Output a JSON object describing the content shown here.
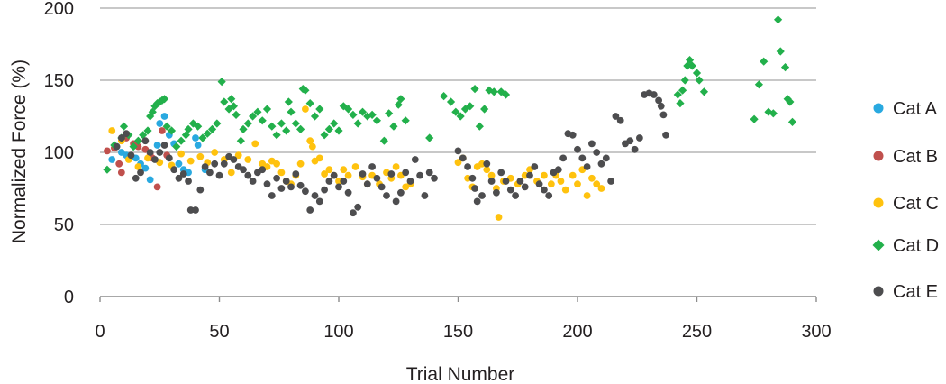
{
  "chart_data": {
    "type": "scatter",
    "title": "",
    "xlabel": "Trial Number",
    "ylabel": "Normalized Force (%)",
    "xlim": [
      0,
      300
    ],
    "ylim": [
      0,
      200
    ],
    "x_ticks": [
      "0",
      "50",
      "100",
      "150",
      "200",
      "250",
      "300"
    ],
    "y_ticks": [
      "0",
      "50",
      "100",
      "150",
      "200"
    ],
    "grid": "horizontal",
    "legend_position": "right",
    "series": [
      {
        "name": "Cat A",
        "color": "#29a9e0",
        "marker": "circle",
        "points": [
          [
            5,
            95
          ],
          [
            7,
            104
          ],
          [
            9,
            100
          ],
          [
            11,
            98
          ],
          [
            13,
            97
          ],
          [
            15,
            96
          ],
          [
            17,
            92
          ],
          [
            19,
            89
          ],
          [
            21,
            81
          ],
          [
            24,
            105
          ],
          [
            25,
            120
          ],
          [
            27,
            125
          ],
          [
            29,
            112
          ],
          [
            31,
            106
          ],
          [
            33,
            92
          ],
          [
            35,
            88
          ],
          [
            37,
            86
          ],
          [
            40,
            110
          ],
          [
            41,
            105
          ],
          [
            44,
            88
          ]
        ]
      },
      {
        "name": "Cat B",
        "color": "#c0504d",
        "marker": "circle",
        "points": [
          [
            3,
            101
          ],
          [
            6,
            103
          ],
          [
            8,
            92
          ],
          [
            9,
            86
          ],
          [
            11,
            110
          ],
          [
            14,
            106
          ],
          [
            16,
            104
          ],
          [
            19,
            102
          ],
          [
            21,
            99
          ],
          [
            22,
            96
          ],
          [
            24,
            76
          ],
          [
            26,
            115
          ],
          [
            28,
            98
          ]
        ]
      },
      {
        "name": "Cat C",
        "color": "#ffc20e",
        "marker": "circle",
        "points": [
          [
            5,
            115
          ],
          [
            9,
            108
          ],
          [
            12,
            95
          ],
          [
            16,
            90
          ],
          [
            20,
            96
          ],
          [
            25,
            93
          ],
          [
            30,
            91
          ],
          [
            34,
            99
          ],
          [
            38,
            94
          ],
          [
            42,
            97
          ],
          [
            45,
            93
          ],
          [
            48,
            100
          ],
          [
            52,
            95
          ],
          [
            55,
            86
          ],
          [
            58,
            98
          ],
          [
            62,
            95
          ],
          [
            65,
            106
          ],
          [
            68,
            92
          ],
          [
            70,
            90
          ],
          [
            72,
            94
          ],
          [
            74,
            92
          ],
          [
            76,
            86
          ],
          [
            78,
            80
          ],
          [
            80,
            78
          ],
          [
            82,
            84
          ],
          [
            84,
            92
          ],
          [
            86,
            130
          ],
          [
            88,
            108
          ],
          [
            89,
            104
          ],
          [
            90,
            94
          ],
          [
            92,
            96
          ],
          [
            94,
            85
          ],
          [
            96,
            88
          ],
          [
            98,
            84
          ],
          [
            100,
            80
          ],
          [
            102,
            88
          ],
          [
            104,
            84
          ],
          [
            107,
            90
          ],
          [
            110,
            83
          ],
          [
            112,
            78
          ],
          [
            114,
            84
          ],
          [
            117,
            78
          ],
          [
            120,
            86
          ],
          [
            122,
            82
          ],
          [
            124,
            90
          ],
          [
            126,
            84
          ],
          [
            128,
            76
          ],
          [
            130,
            78
          ],
          [
            150,
            93
          ],
          [
            152,
            96
          ],
          [
            154,
            82
          ],
          [
            156,
            76
          ],
          [
            158,
            90
          ],
          [
            160,
            92
          ],
          [
            162,
            88
          ],
          [
            164,
            84
          ],
          [
            166,
            75
          ],
          [
            167,
            55
          ],
          [
            169,
            80
          ],
          [
            172,
            82
          ],
          [
            175,
            78
          ],
          [
            178,
            84
          ],
          [
            180,
            88
          ],
          [
            183,
            80
          ],
          [
            186,
            84
          ],
          [
            189,
            78
          ],
          [
            191,
            84
          ],
          [
            193,
            80
          ],
          [
            195,
            74
          ],
          [
            198,
            84
          ],
          [
            200,
            78
          ],
          [
            202,
            88
          ],
          [
            204,
            70
          ],
          [
            206,
            82
          ],
          [
            208,
            78
          ],
          [
            210,
            75
          ]
        ]
      },
      {
        "name": "Cat D",
        "color": "#22b04b",
        "marker": "diamond",
        "points": [
          [
            3,
            88
          ],
          [
            6,
            105
          ],
          [
            9,
            110
          ],
          [
            10,
            118
          ],
          [
            12,
            112
          ],
          [
            14,
            104
          ],
          [
            16,
            108
          ],
          [
            18,
            112
          ],
          [
            20,
            115
          ],
          [
            21,
            125
          ],
          [
            22,
            128
          ],
          [
            23,
            132
          ],
          [
            24,
            134
          ],
          [
            25,
            135
          ],
          [
            26,
            136
          ],
          [
            27,
            137
          ],
          [
            28,
            118
          ],
          [
            30,
            115
          ],
          [
            32,
            104
          ],
          [
            34,
            108
          ],
          [
            36,
            112
          ],
          [
            37,
            116
          ],
          [
            39,
            120
          ],
          [
            41,
            118
          ],
          [
            43,
            110
          ],
          [
            45,
            113
          ],
          [
            47,
            116
          ],
          [
            49,
            120
          ],
          [
            51,
            149
          ],
          [
            52,
            135
          ],
          [
            54,
            130
          ],
          [
            55,
            137
          ],
          [
            56,
            132
          ],
          [
            57,
            126
          ],
          [
            59,
            108
          ],
          [
            60,
            116
          ],
          [
            62,
            120
          ],
          [
            64,
            125
          ],
          [
            66,
            128
          ],
          [
            68,
            122
          ],
          [
            70,
            130
          ],
          [
            72,
            118
          ],
          [
            74,
            112
          ],
          [
            76,
            120
          ],
          [
            78,
            115
          ],
          [
            79,
            135
          ],
          [
            80,
            128
          ],
          [
            82,
            120
          ],
          [
            84,
            116
          ],
          [
            85,
            144
          ],
          [
            86,
            143
          ],
          [
            88,
            134
          ],
          [
            90,
            125
          ],
          [
            92,
            130
          ],
          [
            94,
            112
          ],
          [
            96,
            116
          ],
          [
            98,
            120
          ],
          [
            100,
            115
          ],
          [
            102,
            132
          ],
          [
            104,
            130
          ],
          [
            106,
            126
          ],
          [
            108,
            120
          ],
          [
            110,
            128
          ],
          [
            112,
            125
          ],
          [
            114,
            126
          ],
          [
            116,
            122
          ],
          [
            119,
            108
          ],
          [
            121,
            127
          ],
          [
            123,
            118
          ],
          [
            125,
            133
          ],
          [
            126,
            137
          ],
          [
            128,
            122
          ],
          [
            138,
            110
          ],
          [
            144,
            139
          ],
          [
            147,
            135
          ],
          [
            149,
            128
          ],
          [
            151,
            125
          ],
          [
            153,
            130
          ],
          [
            155,
            132
          ],
          [
            157,
            144
          ],
          [
            159,
            118
          ],
          [
            161,
            130
          ],
          [
            163,
            143
          ],
          [
            165,
            142
          ],
          [
            168,
            142
          ],
          [
            170,
            140
          ],
          [
            242,
            140
          ],
          [
            243,
            134
          ],
          [
            244,
            143
          ],
          [
            245,
            150
          ],
          [
            246,
            160
          ],
          [
            247,
            164
          ],
          [
            248,
            160
          ],
          [
            250,
            155
          ],
          [
            251,
            150
          ],
          [
            253,
            142
          ],
          [
            274,
            123
          ],
          [
            276,
            147
          ],
          [
            278,
            163
          ],
          [
            280,
            128
          ],
          [
            282,
            127
          ],
          [
            284,
            192
          ],
          [
            285,
            170
          ],
          [
            287,
            159
          ],
          [
            288,
            137
          ],
          [
            289,
            135
          ],
          [
            290,
            121
          ]
        ]
      },
      {
        "name": "Cat E",
        "color": "#4d4d4f",
        "marker": "circle",
        "points": [
          [
            7,
            104
          ],
          [
            9,
            110
          ],
          [
            11,
            113
          ],
          [
            13,
            98
          ],
          [
            15,
            82
          ],
          [
            17,
            86
          ],
          [
            19,
            108
          ],
          [
            21,
            100
          ],
          [
            23,
            95
          ],
          [
            25,
            100
          ],
          [
            27,
            105
          ],
          [
            29,
            96
          ],
          [
            31,
            88
          ],
          [
            33,
            82
          ],
          [
            35,
            85
          ],
          [
            37,
            80
          ],
          [
            38,
            60
          ],
          [
            40,
            60
          ],
          [
            42,
            74
          ],
          [
            44,
            90
          ],
          [
            46,
            86
          ],
          [
            48,
            92
          ],
          [
            50,
            84
          ],
          [
            52,
            92
          ],
          [
            54,
            97
          ],
          [
            56,
            95
          ],
          [
            58,
            90
          ],
          [
            60,
            88
          ],
          [
            62,
            84
          ],
          [
            64,
            80
          ],
          [
            66,
            86
          ],
          [
            68,
            88
          ],
          [
            70,
            78
          ],
          [
            72,
            70
          ],
          [
            74,
            82
          ],
          [
            76,
            75
          ],
          [
            78,
            80
          ],
          [
            80,
            76
          ],
          [
            82,
            85
          ],
          [
            84,
            77
          ],
          [
            86,
            73
          ],
          [
            88,
            60
          ],
          [
            90,
            70
          ],
          [
            92,
            66
          ],
          [
            94,
            74
          ],
          [
            96,
            80
          ],
          [
            98,
            84
          ],
          [
            100,
            76
          ],
          [
            102,
            80
          ],
          [
            104,
            72
          ],
          [
            106,
            58
          ],
          [
            108,
            62
          ],
          [
            110,
            85
          ],
          [
            112,
            78
          ],
          [
            114,
            90
          ],
          [
            116,
            82
          ],
          [
            118,
            76
          ],
          [
            120,
            70
          ],
          [
            122,
            85
          ],
          [
            124,
            66
          ],
          [
            126,
            72
          ],
          [
            128,
            86
          ],
          [
            130,
            80
          ],
          [
            132,
            95
          ],
          [
            134,
            84
          ],
          [
            136,
            70
          ],
          [
            138,
            86
          ],
          [
            140,
            82
          ],
          [
            150,
            101
          ],
          [
            152,
            96
          ],
          [
            154,
            90
          ],
          [
            156,
            82
          ],
          [
            157,
            75
          ],
          [
            158,
            66
          ],
          [
            160,
            70
          ],
          [
            162,
            92
          ],
          [
            164,
            80
          ],
          [
            166,
            72
          ],
          [
            168,
            86
          ],
          [
            170,
            80
          ],
          [
            172,
            74
          ],
          [
            174,
            70
          ],
          [
            176,
            80
          ],
          [
            178,
            76
          ],
          [
            180,
            84
          ],
          [
            182,
            90
          ],
          [
            184,
            78
          ],
          [
            186,
            74
          ],
          [
            188,
            70
          ],
          [
            190,
            86
          ],
          [
            192,
            88
          ],
          [
            194,
            96
          ],
          [
            196,
            113
          ],
          [
            198,
            112
          ],
          [
            200,
            102
          ],
          [
            202,
            96
          ],
          [
            204,
            90
          ],
          [
            206,
            106
          ],
          [
            208,
            100
          ],
          [
            210,
            92
          ],
          [
            212,
            96
          ],
          [
            214,
            80
          ],
          [
            216,
            125
          ],
          [
            218,
            122
          ],
          [
            220,
            106
          ],
          [
            222,
            108
          ],
          [
            224,
            102
          ],
          [
            226,
            110
          ],
          [
            228,
            140
          ],
          [
            230,
            141
          ],
          [
            232,
            140
          ],
          [
            234,
            136
          ],
          [
            235,
            132
          ],
          [
            236,
            126
          ],
          [
            237,
            112
          ]
        ]
      }
    ]
  }
}
